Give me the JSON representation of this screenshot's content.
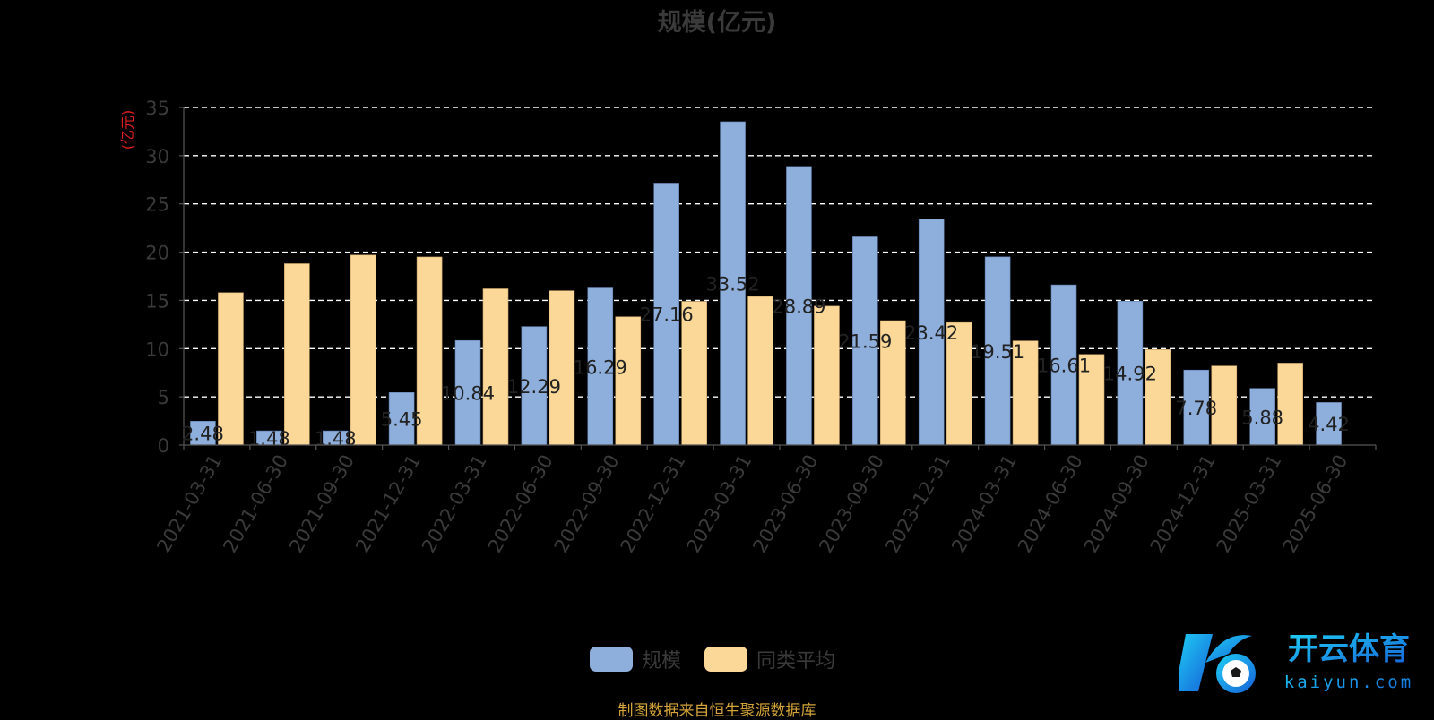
{
  "chart_data": {
    "type": "bar",
    "title": "规模(亿元)",
    "ylabel": "(亿元)",
    "ylim": [
      0,
      35
    ],
    "yticks": [
      0,
      5,
      10,
      15,
      20,
      25,
      30,
      35
    ],
    "grid": true,
    "legend_position": "bottom",
    "categories": [
      "2021-03-31",
      "2021-06-30",
      "2021-09-30",
      "2021-12-31",
      "2022-03-31",
      "2022-06-30",
      "2022-09-30",
      "2022-12-31",
      "2023-03-31",
      "2023-06-30",
      "2023-09-30",
      "2023-12-31",
      "2024-03-31",
      "2024-06-30",
      "2024-09-30",
      "2024-12-31",
      "2025-03-31",
      "2025-06-30"
    ],
    "series": [
      {
        "name": "规模",
        "color": "#8eaedc",
        "values": [
          2.48,
          1.48,
          1.48,
          5.45,
          10.84,
          12.29,
          16.29,
          27.16,
          33.52,
          28.89,
          21.59,
          23.42,
          19.51,
          16.61,
          14.92,
          7.78,
          5.88,
          4.42
        ],
        "labels": [
          "2.48",
          "1.48",
          "1.48",
          "5.45",
          "10.84",
          "12.29",
          "16.29",
          "27.16",
          "33.52",
          "28.89",
          "21.59",
          "23.42",
          "19.51",
          "16.61",
          "14.92",
          "7.78",
          "5.88",
          "4.42"
        ]
      },
      {
        "name": "同类平均",
        "color": "#fcd898",
        "values": [
          15.8,
          18.8,
          19.7,
          19.5,
          16.2,
          16.0,
          13.3,
          14.9,
          15.4,
          14.4,
          12.9,
          12.7,
          10.8,
          9.4,
          9.9,
          8.2,
          8.5,
          null
        ]
      }
    ]
  },
  "source_note": "制图数据来自恒生聚源数据库",
  "watermark": {
    "name": "开云体育",
    "url": "kaiyun.com"
  }
}
